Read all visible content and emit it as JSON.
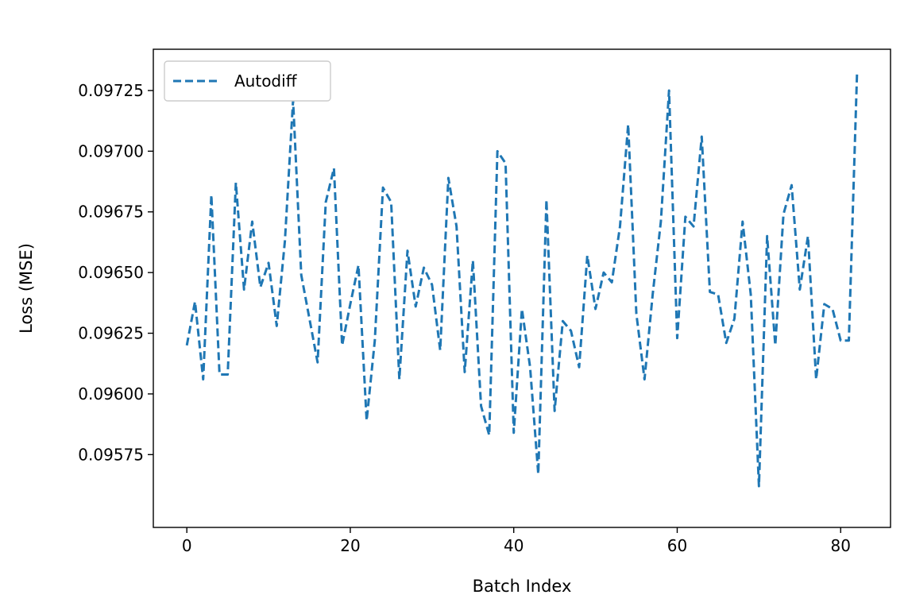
{
  "chart_data": {
    "type": "line",
    "title": "",
    "xlabel": "Batch Index",
    "ylabel": "Loss (MSE)",
    "xlim": [
      -4.1,
      86.1
    ],
    "ylim": [
      0.09545,
      0.09742
    ],
    "xticks": [
      0,
      20,
      40,
      60,
      80
    ],
    "xtick_labels": [
      "0",
      "20",
      "40",
      "60",
      "80"
    ],
    "yticks": [
      0.09575,
      0.096,
      0.09625,
      0.0965,
      0.09675,
      0.097,
      0.09725
    ],
    "ytick_labels": [
      "0.09575",
      "0.09600",
      "0.09625",
      "0.09650",
      "0.09675",
      "0.09700",
      "0.09725"
    ],
    "grid": false,
    "legend_position": "upper-left",
    "series": [
      {
        "name": "Autodiff",
        "color": "#1f77b4",
        "style": "dashed",
        "x": [
          0,
          1,
          2,
          3,
          4,
          5,
          6,
          7,
          8,
          9,
          10,
          11,
          12,
          13,
          14,
          15,
          16,
          17,
          18,
          19,
          20,
          21,
          22,
          23,
          24,
          25,
          26,
          27,
          28,
          29,
          30,
          31,
          32,
          33,
          34,
          35,
          36,
          37,
          38,
          39,
          40,
          41,
          42,
          43,
          44,
          45,
          46,
          47,
          48,
          49,
          50,
          51,
          52,
          53,
          54,
          55,
          56,
          57,
          58,
          59,
          60,
          61,
          62,
          63,
          64,
          65,
          66,
          67,
          68,
          69,
          70,
          71,
          72,
          73,
          74,
          75,
          76,
          77,
          78,
          79,
          80,
          81,
          82
        ],
        "values": [
          0.0962,
          0.09638,
          0.09606,
          0.09682,
          0.09608,
          0.09608,
          0.09687,
          0.09643,
          0.09671,
          0.09644,
          0.09654,
          0.09628,
          0.09663,
          0.09721,
          0.09649,
          0.09631,
          0.09613,
          0.09679,
          0.09693,
          0.0962,
          0.09637,
          0.09653,
          0.09589,
          0.09622,
          0.09685,
          0.09679,
          0.09606,
          0.09659,
          0.09636,
          0.09652,
          0.09645,
          0.09618,
          0.09689,
          0.09669,
          0.09609,
          0.09655,
          0.09595,
          0.09583,
          0.097,
          0.09695,
          0.09584,
          0.09635,
          0.09611,
          0.09567,
          0.0968,
          0.09593,
          0.0963,
          0.09626,
          0.09611,
          0.09657,
          0.09635,
          0.0965,
          0.09646,
          0.09669,
          0.09711,
          0.09633,
          0.09606,
          0.09641,
          0.09671,
          0.09725,
          0.09623,
          0.09673,
          0.09669,
          0.09706,
          0.09642,
          0.09641,
          0.09621,
          0.09631,
          0.09671,
          0.09641,
          0.09562,
          0.09665,
          0.0962,
          0.09674,
          0.09686,
          0.09643,
          0.09665,
          0.09606,
          0.09637,
          0.09635,
          0.09622,
          0.09622,
          0.09732
        ]
      }
    ]
  }
}
